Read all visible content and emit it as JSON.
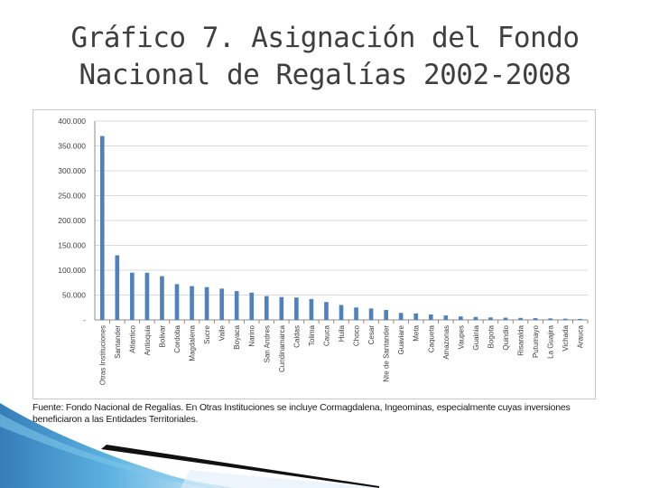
{
  "slide": {
    "title_line1": "Gráfico 7. Asignación del Fondo",
    "title_line2": "Nacional de Regalías 2002-2008"
  },
  "source_note": "Fuente: Fondo Nacional de Regalías. En Otras Instituciones se incluye Cormagdalena, Ingeominas, especialmente cuyas inversiones beneficiaron a las Entidades Territoriales.",
  "colors": {
    "bar": "#4f81bd",
    "grid": "#d9d9d9",
    "axis_text": "#404040",
    "title": "#3f3f3f",
    "decor_blue": "#2e8bc9",
    "decor_dark": "#111111"
  },
  "chart_data": {
    "type": "bar",
    "title": "",
    "xlabel": "",
    "ylabel": "",
    "ylim": [
      0,
      400000
    ],
    "grid": true,
    "yticks": [
      0,
      50000,
      100000,
      150000,
      200000,
      250000,
      300000,
      350000,
      400000
    ],
    "ytick_labels": [
      "-",
      "50.000",
      "100.000",
      "150.000",
      "200.000",
      "250.000",
      "300.000",
      "350.000",
      "400.000"
    ],
    "categories": [
      "Otras Instituciones",
      "Santander",
      "Atlantico",
      "Antioquia",
      "Bolivar",
      "Cordoba",
      "Magdalena",
      "Sucre",
      "Valle",
      "Boyaca",
      "Narino",
      "San Andres",
      "Cundinamarca",
      "Caldas",
      "Tolima",
      "Cauca",
      "Huila",
      "Choco",
      "Cesar",
      "Nte de Santander",
      "Guaviare",
      "Meta",
      "Caqueta",
      "Amazonas",
      "Vaupes",
      "Guainia",
      "Bogota",
      "Quindio",
      "Risaralda",
      "Putumayo",
      "La Guajira",
      "Vichada",
      "Arauca"
    ],
    "values": [
      370000,
      130000,
      95000,
      95000,
      88000,
      72000,
      68000,
      66000,
      63000,
      58000,
      55000,
      48000,
      46000,
      45000,
      42000,
      36000,
      30000,
      25000,
      23000,
      20000,
      14000,
      13000,
      11000,
      9000,
      7000,
      6000,
      5000,
      4500,
      4000,
      3500,
      3000,
      2500,
      2000
    ]
  }
}
